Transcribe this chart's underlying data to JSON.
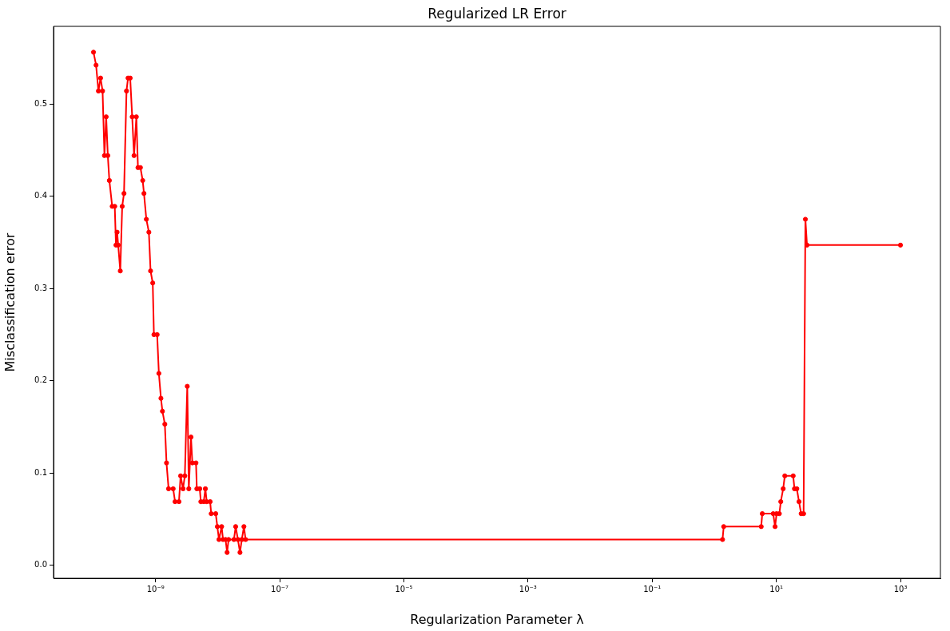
{
  "chart_data": {
    "type": "line",
    "title": "Regularized LR Error",
    "xlabel": "Regularization Parameter λ",
    "ylabel": "Misclassification error",
    "log": "x",
    "grid": false,
    "legend": false,
    "marker": "circle",
    "line_style": "solid",
    "xlim": [
      2.27e-11,
      4400
    ],
    "ylim": [
      -0.014,
      0.584
    ],
    "xticks": [
      {
        "value": 1e-09,
        "label": "10⁻⁹"
      },
      {
        "value": 1e-07,
        "label": "10⁻⁷"
      },
      {
        "value": 1e-05,
        "label": "10⁻⁵"
      },
      {
        "value": 0.001,
        "label": "10⁻³"
      },
      {
        "value": 0.1,
        "label": "10⁻¹"
      },
      {
        "value": 10,
        "label": "10¹"
      },
      {
        "value": 1000,
        "label": "10³"
      }
    ],
    "yticks": [
      {
        "value": 0,
        "label": "0.0"
      },
      {
        "value": 0.1,
        "label": "0.1"
      },
      {
        "value": 0.2,
        "label": "0.2"
      },
      {
        "value": 0.3,
        "label": "0.3"
      },
      {
        "value": 0.4,
        "label": "0.4"
      },
      {
        "value": 0.5,
        "label": "0.5"
      }
    ],
    "series": [
      {
        "color": "#ff0000",
        "x": [
          1e-10,
          1.1e-10,
          1.2e-10,
          1.3e-10,
          1.4e-10,
          1.5e-10,
          1.6e-10,
          1.7e-10,
          1.8e-10,
          2e-10,
          2.2e-10,
          2.3e-10,
          2.4e-10,
          2.5e-10,
          2.7e-10,
          2.9e-10,
          3.1e-10,
          3.4e-10,
          3.6e-10,
          3.9e-10,
          4.2e-10,
          4.5e-10,
          4.9e-10,
          5.2e-10,
          5.7e-10,
          6.2e-10,
          6.5e-10,
          7.1e-10,
          7.8e-10,
          8.3e-10,
          9e-10,
          9.4e-10,
          1.06e-09,
          1.13e-09,
          1.22e-09,
          1.29e-09,
          1.41e-09,
          1.5e-09,
          1.62e-09,
          1.92e-09,
          2.06e-09,
          2.38e-09,
          2.53e-09,
          2.77e-09,
          2.96e-09,
          3.24e-09,
          3.43e-09,
          3.72e-09,
          3.91e-09,
          4.48e-09,
          4.62e-09,
          5.15e-09,
          5.36e-09,
          5.97e-09,
          6.34e-09,
          6.67e-09,
          7.57e-09,
          7.87e-09,
          9.31e-09,
          9.89e-09,
          1.05e-08,
          1.16e-08,
          1.22e-08,
          1.34e-08,
          1.42e-08,
          1.5e-08,
          1.83e-08,
          1.95e-08,
          2.12e-08,
          2.29e-08,
          2.45e-08,
          2.65e-08,
          2.82e-08,
          1.36,
          1.42,
          5.71,
          5.94,
          8.91,
          9.55,
          10.1,
          11.2,
          11.8,
          12.9,
          13.7,
          18.7,
          19.6,
          21.4,
          23.2,
          25.1,
          27.5,
          29.4,
          31.2,
          1000
        ],
        "values": [
          0.556,
          0.542,
          0.514,
          0.528,
          0.514,
          0.444,
          0.486,
          0.444,
          0.417,
          0.389,
          0.389,
          0.347,
          0.361,
          0.347,
          0.319,
          0.389,
          0.403,
          0.514,
          0.528,
          0.528,
          0.486,
          0.444,
          0.486,
          0.431,
          0.431,
          0.417,
          0.403,
          0.375,
          0.361,
          0.319,
          0.306,
          0.25,
          0.25,
          0.208,
          0.181,
          0.167,
          0.153,
          0.111,
          0.083,
          0.083,
          0.069,
          0.069,
          0.097,
          0.083,
          0.097,
          0.194,
          0.083,
          0.139,
          0.111,
          0.111,
          0.083,
          0.083,
          0.069,
          0.069,
          0.083,
          0.069,
          0.069,
          0.056,
          0.056,
          0.042,
          0.028,
          0.042,
          0.028,
          0.028,
          0.014,
          0.028,
          0.028,
          0.042,
          0.028,
          0.014,
          0.028,
          0.042,
          0.028,
          0.028,
          0.042,
          0.042,
          0.056,
          0.056,
          0.042,
          0.056,
          0.056,
          0.069,
          0.083,
          0.097,
          0.097,
          0.083,
          0.083,
          0.069,
          0.056,
          0.056,
          0.375,
          0.347,
          0.347
        ]
      }
    ]
  }
}
